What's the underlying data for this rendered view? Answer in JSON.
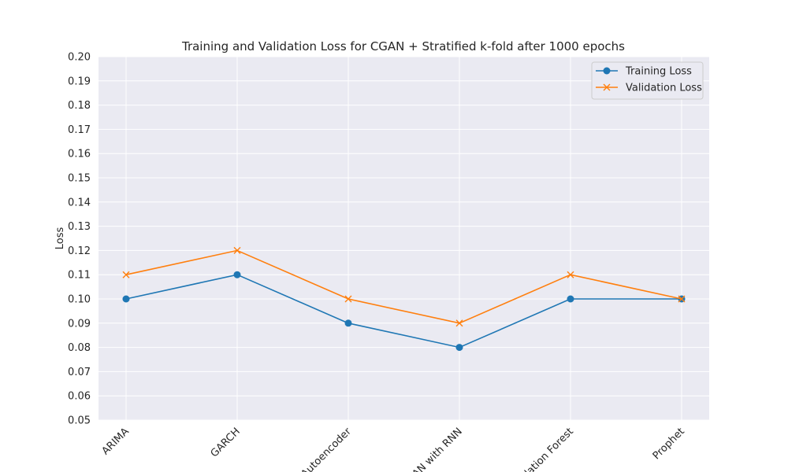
{
  "chart_data": {
    "type": "line",
    "title": "Training and Validation Loss for CGAN + Stratified k-fold after 1000 epochs",
    "xlabel": "",
    "ylabel": "Loss",
    "categories": [
      "ARIMA",
      "GARCH",
      "Autoencoder",
      "GAN with RNN",
      "Isolation Forest",
      "Prophet"
    ],
    "ylim": [
      0.05,
      0.2
    ],
    "yticks": [
      "0.05",
      "0.06",
      "0.07",
      "0.08",
      "0.09",
      "0.10",
      "0.11",
      "0.12",
      "0.13",
      "0.14",
      "0.15",
      "0.16",
      "0.17",
      "0.18",
      "0.19",
      "0.20"
    ],
    "grid": true,
    "legend_position": "top-right",
    "series": [
      {
        "name": "Training Loss",
        "marker": "circle",
        "color": "#1f77b4",
        "values": [
          0.1,
          0.11,
          0.09,
          0.08,
          0.1,
          0.1
        ]
      },
      {
        "name": "Validation Loss",
        "marker": "x",
        "color": "#ff7f0e",
        "values": [
          0.11,
          0.12,
          0.1,
          0.09,
          0.11,
          0.1
        ]
      }
    ]
  }
}
